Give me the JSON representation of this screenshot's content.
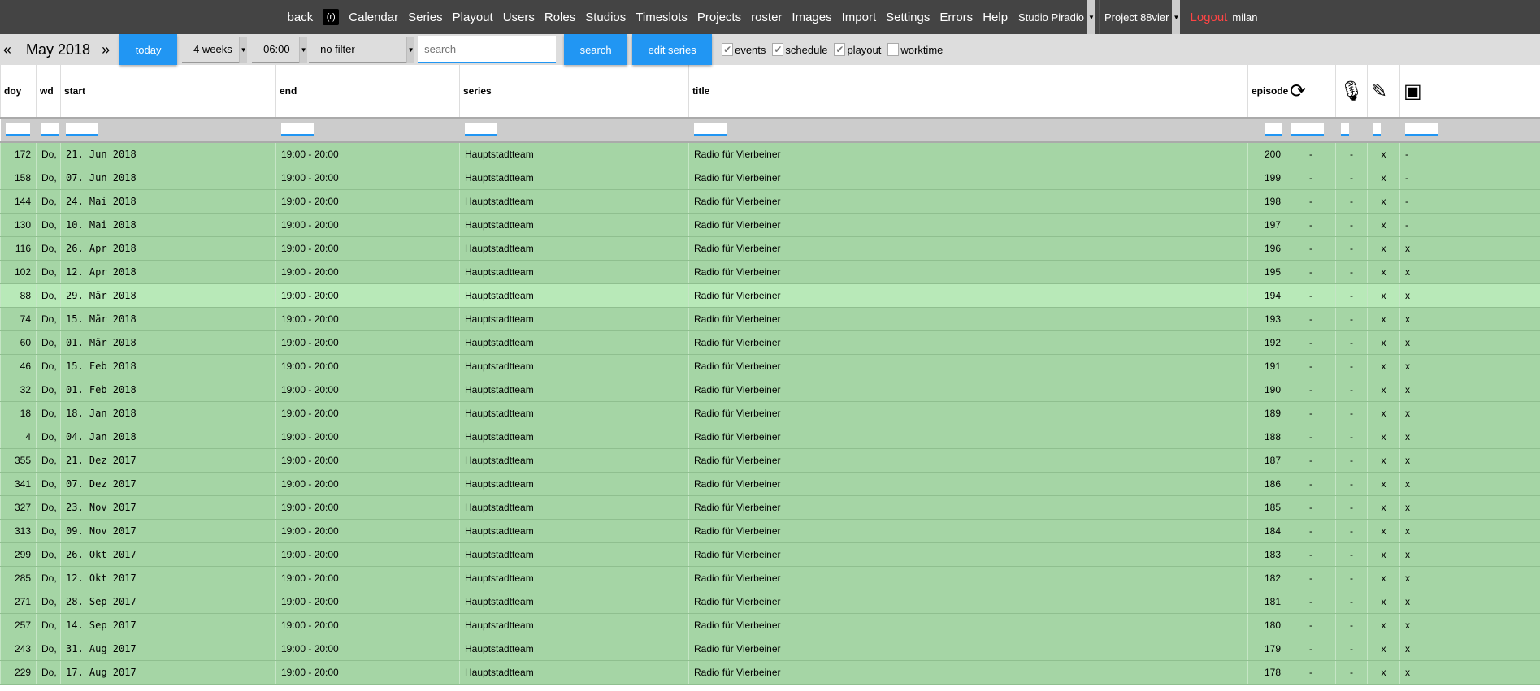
{
  "nav": {
    "items": [
      "back",
      "Calendar",
      "Series",
      "Playout",
      "Users",
      "Roles",
      "Studios",
      "Timeslots",
      "Projects",
      "roster",
      "Images",
      "Import",
      "Settings",
      "Errors",
      "Help"
    ],
    "logo": "(r)",
    "studio": "Studio Piradio",
    "project": "Project 88vier",
    "logout": "Logout",
    "user": "milan"
  },
  "toolbar": {
    "prev": "«",
    "month": "May 2018",
    "next": "»",
    "today": "today",
    "range": "4 weeks",
    "time": "06:00",
    "filter": "no filter",
    "search_placeholder": "search",
    "search": "search",
    "edit_series": "edit series",
    "checks": [
      {
        "label": "events",
        "checked": true
      },
      {
        "label": "schedule",
        "checked": true
      },
      {
        "label": "playout",
        "checked": true
      },
      {
        "label": "worktime",
        "checked": false
      }
    ]
  },
  "columns": [
    "doy",
    "wd",
    "start",
    "end",
    "series",
    "title",
    "episode"
  ],
  "icon_columns": [
    "rerun-icon",
    "microphone-icon",
    "pencil-icon",
    "archive-icon"
  ],
  "colors": {
    "row": "#a5d5a5",
    "row_highlight": "#b8e9b8",
    "accent": "#2196f3"
  },
  "rows": [
    [
      "172",
      "Do,",
      "21. Jun 2018",
      "19:00 - 20:00",
      "Hauptstadtteam",
      "Radio für Vierbeiner",
      "200",
      "-",
      "-",
      "x",
      "-"
    ],
    [
      "158",
      "Do,",
      "07. Jun 2018",
      "19:00 - 20:00",
      "Hauptstadtteam",
      "Radio für Vierbeiner",
      "199",
      "-",
      "-",
      "x",
      "-"
    ],
    [
      "144",
      "Do,",
      "24. Mai 2018",
      "19:00 - 20:00",
      "Hauptstadtteam",
      "Radio für Vierbeiner",
      "198",
      "-",
      "-",
      "x",
      "-"
    ],
    [
      "130",
      "Do,",
      "10. Mai 2018",
      "19:00 - 20:00",
      "Hauptstadtteam",
      "Radio für Vierbeiner",
      "197",
      "-",
      "-",
      "x",
      "-"
    ],
    [
      "116",
      "Do,",
      "26. Apr 2018",
      "19:00 - 20:00",
      "Hauptstadtteam",
      "Radio für Vierbeiner",
      "196",
      "-",
      "-",
      "x",
      "x"
    ],
    [
      "102",
      "Do,",
      "12. Apr 2018",
      "19:00 - 20:00",
      "Hauptstadtteam",
      "Radio für Vierbeiner",
      "195",
      "-",
      "-",
      "x",
      "x"
    ],
    [
      "88",
      "Do,",
      "29. Mär 2018",
      "19:00 - 20:00",
      "Hauptstadtteam",
      "Radio für Vierbeiner",
      "194",
      "-",
      "-",
      "x",
      "x"
    ],
    [
      "74",
      "Do,",
      "15. Mär 2018",
      "19:00 - 20:00",
      "Hauptstadtteam",
      "Radio für Vierbeiner",
      "193",
      "-",
      "-",
      "x",
      "x"
    ],
    [
      "60",
      "Do,",
      "01. Mär 2018",
      "19:00 - 20:00",
      "Hauptstadtteam",
      "Radio für Vierbeiner",
      "192",
      "-",
      "-",
      "x",
      "x"
    ],
    [
      "46",
      "Do,",
      "15. Feb 2018",
      "19:00 - 20:00",
      "Hauptstadtteam",
      "Radio für Vierbeiner",
      "191",
      "-",
      "-",
      "x",
      "x"
    ],
    [
      "32",
      "Do,",
      "01. Feb 2018",
      "19:00 - 20:00",
      "Hauptstadtteam",
      "Radio für Vierbeiner",
      "190",
      "-",
      "-",
      "x",
      "x"
    ],
    [
      "18",
      "Do,",
      "18. Jan 2018",
      "19:00 - 20:00",
      "Hauptstadtteam",
      "Radio für Vierbeiner",
      "189",
      "-",
      "-",
      "x",
      "x"
    ],
    [
      "4",
      "Do,",
      "04. Jan 2018",
      "19:00 - 20:00",
      "Hauptstadtteam",
      "Radio für Vierbeiner",
      "188",
      "-",
      "-",
      "x",
      "x"
    ],
    [
      "355",
      "Do,",
      "21. Dez 2017",
      "19:00 - 20:00",
      "Hauptstadtteam",
      "Radio für Vierbeiner",
      "187",
      "-",
      "-",
      "x",
      "x"
    ],
    [
      "341",
      "Do,",
      "07. Dez 2017",
      "19:00 - 20:00",
      "Hauptstadtteam",
      "Radio für Vierbeiner",
      "186",
      "-",
      "-",
      "x",
      "x"
    ],
    [
      "327",
      "Do,",
      "23. Nov 2017",
      "19:00 - 20:00",
      "Hauptstadtteam",
      "Radio für Vierbeiner",
      "185",
      "-",
      "-",
      "x",
      "x"
    ],
    [
      "313",
      "Do,",
      "09. Nov 2017",
      "19:00 - 20:00",
      "Hauptstadtteam",
      "Radio für Vierbeiner",
      "184",
      "-",
      "-",
      "x",
      "x"
    ],
    [
      "299",
      "Do,",
      "26. Okt 2017",
      "19:00 - 20:00",
      "Hauptstadtteam",
      "Radio für Vierbeiner",
      "183",
      "-",
      "-",
      "x",
      "x"
    ],
    [
      "285",
      "Do,",
      "12. Okt 2017",
      "19:00 - 20:00",
      "Hauptstadtteam",
      "Radio für Vierbeiner",
      "182",
      "-",
      "-",
      "x",
      "x"
    ],
    [
      "271",
      "Do,",
      "28. Sep 2017",
      "19:00 - 20:00",
      "Hauptstadtteam",
      "Radio für Vierbeiner",
      "181",
      "-",
      "-",
      "x",
      "x"
    ],
    [
      "257",
      "Do,",
      "14. Sep 2017",
      "19:00 - 20:00",
      "Hauptstadtteam",
      "Radio für Vierbeiner",
      "180",
      "-",
      "-",
      "x",
      "x"
    ],
    [
      "243",
      "Do,",
      "31. Aug 2017",
      "19:00 - 20:00",
      "Hauptstadtteam",
      "Radio für Vierbeiner",
      "179",
      "-",
      "-",
      "x",
      "x"
    ],
    [
      "229",
      "Do,",
      "17. Aug 2017",
      "19:00 - 20:00",
      "Hauptstadtteam",
      "Radio für Vierbeiner",
      "178",
      "-",
      "-",
      "x",
      "x"
    ]
  ],
  "highlighted_row": 6
}
